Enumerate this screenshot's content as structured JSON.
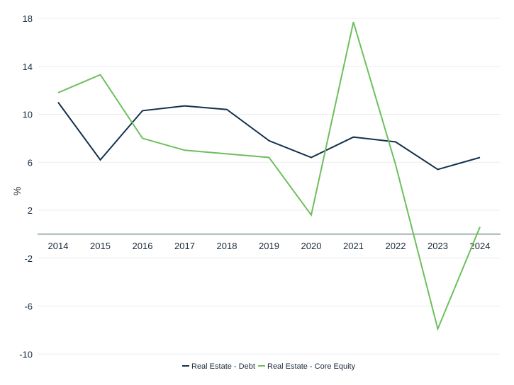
{
  "chart_data": {
    "type": "line",
    "ylabel": "%",
    "ylim": [
      -10,
      18
    ],
    "yticks": [
      "18",
      "14",
      "10",
      "6",
      "2",
      "-2",
      "-6",
      "-10"
    ],
    "categories": [
      "2014",
      "2015",
      "2016",
      "2017",
      "2018",
      "2019",
      "2020",
      "2021",
      "2022",
      "2023",
      "2024"
    ],
    "grid": "horizontal",
    "legend_position": "bottom",
    "series": [
      {
        "name": "Real Estate - Debt",
        "color": "#13304d",
        "values": [
          11.0,
          6.2,
          10.3,
          10.7,
          10.4,
          7.8,
          6.4,
          8.1,
          7.7,
          5.4,
          6.4
        ]
      },
      {
        "name": "Real Estate - Core Equity",
        "color": "#6dbf5d",
        "values": [
          11.8,
          13.3,
          8.0,
          7.0,
          6.7,
          6.4,
          1.6,
          17.7,
          5.8,
          -7.9,
          0.6
        ]
      }
    ]
  }
}
